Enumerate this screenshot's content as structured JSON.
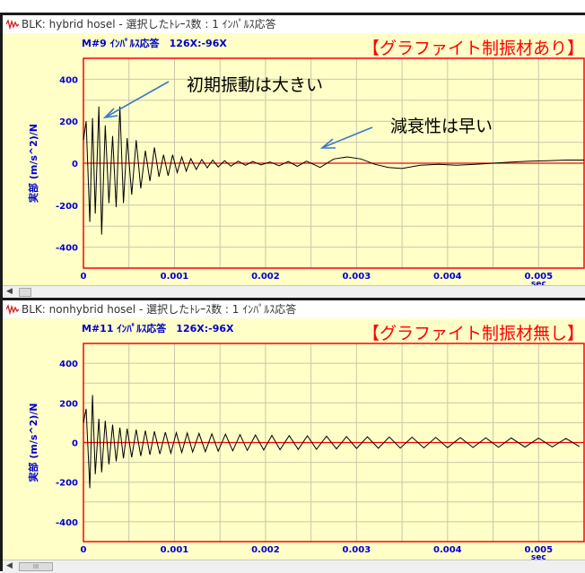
{
  "panels": [
    {
      "window_title": "BLK: hybrid hosel - 選択したﾄﾚｰｽ数 : 1 ｲﾝﾊﾟﾙｽ応答",
      "trace_label": "M#9 ｲﾝﾊﾟﾙｽ応答　126X:-96X",
      "banner": "【グラファイト制振材あり】",
      "annotations": [
        "初期振動は大きい",
        "減衰性は早い"
      ]
    },
    {
      "window_title": "BLK: nonhybrid hosel - 選択したﾄﾚｰｽ数 : 1 ｲﾝﾊﾟﾙｽ応答",
      "trace_label": "M#11 ｲﾝﾊﾟﾙｽ応答　126X:-96X",
      "banner": "【グラファイト制振材無し】",
      "annotations": []
    }
  ],
  "colors": {
    "plot_bg": "#ffffc8",
    "frame": "#ff0000",
    "trace": "#000000",
    "axis_text": "#0000cc",
    "banner": "#ff0000",
    "arrow": "#3c78c8"
  },
  "chart_data": [
    {
      "type": "line",
      "title": "M#9 ｲﾝﾊﾟﾙｽ応答　126X:-96X",
      "xlabel": "sec",
      "ylabel": "実部 (m/s^2)/N",
      "xlim": [
        0,
        0.0055
      ],
      "ylim": [
        -500,
        500
      ],
      "xticks": [
        "0",
        "0.001",
        "0.002",
        "0.003",
        "0.004",
        "0.005"
      ],
      "yticks": [
        "400",
        "200",
        "0",
        "-200",
        "-400"
      ],
      "grid": true,
      "series": [
        {
          "x": [
            0,
            3e-05,
            7e-05,
            0.0001,
            0.00013,
            0.00017,
            0.0002,
            0.00024,
            0.00028,
            0.00032,
            0.00036,
            0.0004,
            0.00044,
            0.00048,
            0.00053,
            0.00058,
            0.00063,
            0.00068,
            0.00073,
            0.00078,
            0.00083,
            0.00088,
            0.00093,
            0.00098,
            0.00103,
            0.00108,
            0.00113,
            0.00118,
            0.00124,
            0.0013,
            0.00136,
            0.00142,
            0.00148,
            0.00155,
            0.00162,
            0.0017,
            0.00178,
            0.00186,
            0.00195,
            0.00205,
            0.00215,
            0.00225,
            0.00235,
            0.00245,
            0.0026,
            0.00275,
            0.0029,
            0.00305,
            0.0032,
            0.00335,
            0.0035,
            0.0037,
            0.0039,
            0.0041,
            0.0043,
            0.0045,
            0.0047,
            0.0049,
            0.0051,
            0.0053,
            0.0055
          ],
          "y": [
            110,
            200,
            -280,
            215,
            -240,
            270,
            -340,
            180,
            -190,
            130,
            -210,
            270,
            -190,
            120,
            -150,
            110,
            -120,
            60,
            -85,
            75,
            -65,
            40,
            -60,
            40,
            -45,
            30,
            -38,
            22,
            -30,
            18,
            -22,
            15,
            -18,
            12,
            -14,
            10,
            -10,
            8,
            -8,
            6,
            -12,
            8,
            -15,
            10,
            -20,
            20,
            30,
            20,
            -5,
            -20,
            -25,
            -10,
            -5,
            -10,
            -5,
            0,
            5,
            10,
            12,
            15,
            15
          ]
        }
      ]
    },
    {
      "type": "line",
      "title": "M#11 ｲﾝﾊﾟﾙｽ応答　126X:-96X",
      "xlabel": "sec",
      "ylabel": "実部 (m/s^2)/N",
      "xlim": [
        0,
        0.0055
      ],
      "ylim": [
        -500,
        500
      ],
      "xticks": [
        "0",
        "0.001",
        "0.002",
        "0.003",
        "0.004",
        "0.005"
      ],
      "yticks": [
        "400",
        "200",
        "0",
        "-200",
        "-400"
      ],
      "grid": true,
      "series": [
        {
          "x": [
            0,
            3e-05,
            7e-05,
            0.0001,
            0.00013,
            0.00017,
            0.0002,
            0.00024,
            0.00028,
            0.00032,
            0.00036,
            0.0004,
            0.00044,
            0.00048,
            0.00053,
            0.00058,
            0.00063,
            0.00068,
            0.00073,
            0.00078,
            0.00084,
            0.0009,
            0.00096,
            0.00102,
            0.00108,
            0.00114,
            0.0012,
            0.00127,
            0.00134,
            0.00141,
            0.00148,
            0.00156,
            0.00164,
            0.00172,
            0.0018,
            0.00189,
            0.00198,
            0.00207,
            0.00216,
            0.00226,
            0.00236,
            0.00246,
            0.00256,
            0.00267,
            0.00278,
            0.00289,
            0.003,
            0.00312,
            0.00324,
            0.00336,
            0.00348,
            0.00361,
            0.00374,
            0.00387,
            0.004,
            0.00414,
            0.00428,
            0.00442,
            0.00456,
            0.0047,
            0.00485,
            0.005,
            0.00515,
            0.0053,
            0.00545
          ],
          "y": [
            100,
            170,
            -230,
            240,
            -160,
            120,
            -150,
            110,
            -110,
            90,
            -95,
            75,
            -80,
            70,
            -75,
            65,
            -68,
            60,
            -62,
            56,
            -58,
            52,
            -54,
            50,
            -50,
            48,
            -48,
            46,
            -46,
            44,
            -44,
            42,
            -42,
            40,
            -40,
            38,
            -38,
            36,
            -36,
            35,
            -35,
            34,
            -34,
            32,
            -32,
            30,
            -30,
            29,
            -29,
            28,
            -28,
            27,
            -27,
            26,
            -26,
            25,
            -25,
            24,
            -24,
            23,
            -23,
            22,
            -22,
            21,
            -21
          ]
        }
      ]
    }
  ]
}
